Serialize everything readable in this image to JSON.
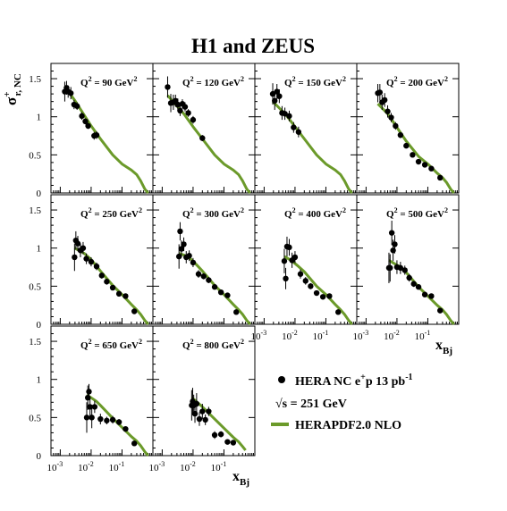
{
  "figure": {
    "title": "H1 and ZEUS",
    "ylabel": {
      "main": "σ",
      "sup": "+",
      "sub": "r, NC"
    },
    "xlabel": {
      "main": "x",
      "sub": "Bj"
    },
    "y_ticks": [
      "0",
      "0.5",
      "1",
      "1.5"
    ],
    "x_ticks": [
      {
        "base": "10",
        "exp": "-3"
      },
      {
        "base": "10",
        "exp": "-2"
      },
      {
        "base": "10",
        "exp": "-1"
      }
    ],
    "legend": {
      "data_label": "HERA NC e",
      "data_sup": "+",
      "data_tail": "p 13 pb",
      "data_tail_sup": "-1",
      "sqrt_s": "√s = 251 GeV",
      "model_label": "HERAPDF2.0 NLO"
    },
    "colors": {
      "model": "#6b9a2a",
      "data": "#000000",
      "frame": "#000000"
    }
  },
  "chart_data": [
    {
      "type": "scatter",
      "q2_label": "Q",
      "q2_sup": "2",
      "q2_value": " = 90 GeV",
      "q2_unit_sup": "2",
      "xlim": [
        0.0005,
        1
      ],
      "ylim": [
        0,
        1.7
      ],
      "log_x": true,
      "series": [
        {
          "name": "HERA NC e+p 13 pb-1",
          "x": [
            0.0014,
            0.0016,
            0.0018,
            0.0022,
            0.0028,
            0.0035,
            0.005,
            0.0065,
            0.008,
            0.0125,
            0.015
          ],
          "y": [
            1.33,
            1.38,
            1.33,
            1.31,
            1.16,
            1.14,
            1.01,
            0.94,
            0.88,
            0.75,
            0.76
          ],
          "yerr": [
            0.13,
            0.09,
            0.08,
            0.08,
            0.06,
            0.05,
            0.05,
            0.04,
            0.04,
            0.05,
            0.05
          ]
        },
        {
          "name": "HERAPDF2.0 NLO",
          "x": [
            0.0014,
            0.002,
            0.003,
            0.005,
            0.01,
            0.02,
            0.05,
            0.1,
            0.2,
            0.3,
            0.4,
            0.55,
            0.7
          ],
          "y": [
            1.4,
            1.31,
            1.21,
            1.07,
            0.88,
            0.71,
            0.5,
            0.38,
            0.3,
            0.24,
            0.16,
            0.05,
            0.0
          ]
        }
      ]
    },
    {
      "type": "scatter",
      "q2_label": "Q",
      "q2_sup": "2",
      "q2_value": " = 120 GeV",
      "q2_unit_sup": "2",
      "xlim": [
        0.0005,
        1
      ],
      "ylim": [
        0,
        1.7
      ],
      "log_x": true,
      "series": [
        {
          "name": "HERA NC e+p 13 pb-1",
          "x": [
            0.0015,
            0.0019,
            0.0023,
            0.0027,
            0.0032,
            0.0038,
            0.0045,
            0.0055,
            0.007,
            0.01,
            0.02
          ],
          "y": [
            1.39,
            1.18,
            1.19,
            1.21,
            1.16,
            1.08,
            1.17,
            1.13,
            1.05,
            0.96,
            0.72
          ],
          "yerr": [
            0.14,
            0.12,
            0.1,
            0.08,
            0.08,
            0.07,
            0.06,
            0.06,
            0.05,
            0.05,
            0.04
          ]
        },
        {
          "name": "HERAPDF2.0 NLO",
          "x": [
            0.0015,
            0.002,
            0.003,
            0.005,
            0.01,
            0.02,
            0.05,
            0.1,
            0.2,
            0.3,
            0.4,
            0.55,
            0.7
          ],
          "y": [
            1.28,
            1.22,
            1.14,
            1.04,
            0.87,
            0.71,
            0.5,
            0.38,
            0.3,
            0.24,
            0.16,
            0.05,
            0.0
          ]
        }
      ]
    },
    {
      "type": "scatter",
      "q2_label": "Q",
      "q2_sup": "2",
      "q2_value": " = 150 GeV",
      "q2_unit_sup": "2",
      "xlim": [
        0.0005,
        1
      ],
      "ylim": [
        0,
        1.7
      ],
      "log_x": true,
      "series": [
        {
          "name": "HERA NC e+p 13 pb-1",
          "x": [
            0.0019,
            0.0022,
            0.0026,
            0.0031,
            0.0038,
            0.0047,
            0.0065,
            0.009,
            0.013
          ],
          "y": [
            1.3,
            1.21,
            1.33,
            1.27,
            1.05,
            1.04,
            1.01,
            0.86,
            0.8
          ],
          "yerr": [
            0.14,
            0.12,
            0.1,
            0.09,
            0.09,
            0.08,
            0.07,
            0.07,
            0.07
          ]
        },
        {
          "name": "HERAPDF2.0 NLO",
          "x": [
            0.0019,
            0.003,
            0.005,
            0.01,
            0.02,
            0.05,
            0.1,
            0.2,
            0.3,
            0.4,
            0.55,
            0.7
          ],
          "y": [
            1.2,
            1.12,
            1.03,
            0.87,
            0.71,
            0.5,
            0.38,
            0.3,
            0.24,
            0.16,
            0.05,
            0.0
          ]
        }
      ]
    },
    {
      "type": "scatter",
      "q2_label": "Q",
      "q2_sup": "2",
      "q2_value": " = 200 GeV",
      "q2_unit_sup": "2",
      "xlim": [
        0.0005,
        1
      ],
      "ylim": [
        0,
        1.7
      ],
      "log_x": true,
      "series": [
        {
          "name": "HERA NC e+p 13 pb-1",
          "x": [
            0.0024,
            0.0028,
            0.0033,
            0.004,
            0.005,
            0.0065,
            0.009,
            0.013,
            0.02,
            0.032,
            0.05,
            0.08,
            0.13,
            0.25
          ],
          "y": [
            1.31,
            1.32,
            1.19,
            1.22,
            1.07,
            0.99,
            0.88,
            0.76,
            0.62,
            0.5,
            0.41,
            0.37,
            0.32,
            0.2
          ],
          "yerr": [
            0.12,
            0.11,
            0.1,
            0.09,
            0.08,
            0.06,
            0.05,
            0.04,
            0.03,
            0.03,
            0.03,
            0.02,
            0.02,
            0.02
          ]
        },
        {
          "name": "HERAPDF2.0 NLO",
          "x": [
            0.0024,
            0.003,
            0.005,
            0.01,
            0.02,
            0.05,
            0.1,
            0.2,
            0.3,
            0.4,
            0.55,
            0.7
          ],
          "y": [
            1.17,
            1.13,
            1.04,
            0.86,
            0.68,
            0.48,
            0.38,
            0.26,
            0.2,
            0.14,
            0.05,
            0.0
          ]
        }
      ]
    },
    {
      "type": "scatter",
      "q2_label": "Q",
      "q2_sup": "2",
      "q2_value": " = 250 GeV",
      "q2_unit_sup": "2",
      "xlim": [
        0.0005,
        1
      ],
      "ylim": [
        0,
        1.7
      ],
      "log_x": true,
      "series": [
        {
          "name": "HERA NC e+p 13 pb-1",
          "x": [
            0.0029,
            0.0032,
            0.0037,
            0.0045,
            0.0055,
            0.007,
            0.01,
            0.015,
            0.022,
            0.032,
            0.05,
            0.08,
            0.13,
            0.25
          ],
          "y": [
            0.88,
            1.1,
            1.06,
            0.97,
            1.0,
            0.86,
            0.82,
            0.76,
            0.64,
            0.56,
            0.48,
            0.4,
            0.37,
            0.17
          ],
          "yerr": [
            0.18,
            0.12,
            0.1,
            0.09,
            0.08,
            0.07,
            0.06,
            0.05,
            0.04,
            0.04,
            0.03,
            0.03,
            0.02,
            0.02
          ]
        },
        {
          "name": "HERAPDF2.0 NLO",
          "x": [
            0.0029,
            0.004,
            0.006,
            0.01,
            0.02,
            0.05,
            0.1,
            0.2,
            0.3,
            0.4,
            0.55,
            0.7
          ],
          "y": [
            1.0,
            0.97,
            0.93,
            0.85,
            0.7,
            0.51,
            0.39,
            0.26,
            0.19,
            0.13,
            0.05,
            0.0
          ]
        }
      ]
    },
    {
      "type": "scatter",
      "q2_label": "Q",
      "q2_sup": "2",
      "q2_value": " = 300 GeV",
      "q2_unit_sup": "2",
      "xlim": [
        0.0005,
        1
      ],
      "ylim": [
        0,
        1.7
      ],
      "log_x": true,
      "series": [
        {
          "name": "HERA NC e+p 13 pb-1",
          "x": [
            0.0035,
            0.0038,
            0.0042,
            0.005,
            0.006,
            0.0075,
            0.01,
            0.015,
            0.022,
            0.032,
            0.05,
            0.08,
            0.13,
            0.25
          ],
          "y": [
            0.89,
            1.22,
            0.99,
            1.05,
            0.88,
            0.9,
            0.81,
            0.66,
            0.63,
            0.58,
            0.49,
            0.42,
            0.38,
            0.16
          ],
          "yerr": [
            0.16,
            0.12,
            0.11,
            0.09,
            0.08,
            0.07,
            0.06,
            0.05,
            0.04,
            0.04,
            0.03,
            0.03,
            0.02,
            0.02
          ]
        },
        {
          "name": "HERAPDF2.0 NLO",
          "x": [
            0.0035,
            0.005,
            0.007,
            0.01,
            0.02,
            0.05,
            0.1,
            0.2,
            0.3,
            0.4,
            0.55,
            0.7
          ],
          "y": [
            0.93,
            0.91,
            0.88,
            0.83,
            0.7,
            0.51,
            0.39,
            0.26,
            0.19,
            0.13,
            0.05,
            0.0
          ]
        }
      ]
    },
    {
      "type": "scatter",
      "q2_label": "Q",
      "q2_sup": "2",
      "q2_value": " = 400 GeV",
      "q2_unit_sup": "2",
      "xlim": [
        0.0005,
        1
      ],
      "ylim": [
        0,
        1.7
      ],
      "log_x": true,
      "series": [
        {
          "name": "HERA NC e+p 13 pb-1",
          "x": [
            0.0045,
            0.005,
            0.0055,
            0.0065,
            0.008,
            0.01,
            0.015,
            0.022,
            0.032,
            0.05,
            0.08,
            0.13,
            0.25
          ],
          "y": [
            0.83,
            0.6,
            1.02,
            1.01,
            0.84,
            0.88,
            0.66,
            0.57,
            0.5,
            0.41,
            0.36,
            0.37,
            0.16
          ],
          "yerr": [
            0.16,
            0.14,
            0.13,
            0.11,
            0.1,
            0.08,
            0.06,
            0.05,
            0.04,
            0.03,
            0.03,
            0.02,
            0.02
          ]
        },
        {
          "name": "HERAPDF2.0 NLO",
          "x": [
            0.0045,
            0.006,
            0.008,
            0.012,
            0.02,
            0.05,
            0.1,
            0.2,
            0.3,
            0.4,
            0.55,
            0.7
          ],
          "y": [
            0.89,
            0.86,
            0.83,
            0.77,
            0.69,
            0.5,
            0.39,
            0.26,
            0.19,
            0.13,
            0.05,
            0.0
          ]
        }
      ]
    },
    {
      "type": "scatter",
      "q2_label": "Q",
      "q2_sup": "2",
      "q2_value": " = 500 GeV",
      "q2_unit_sup": "2",
      "xlim": [
        0.0005,
        1
      ],
      "ylim": [
        0,
        1.7
      ],
      "log_x": true,
      "series": [
        {
          "name": "HERA NC e+p 13 pb-1",
          "x": [
            0.0055,
            0.006,
            0.0068,
            0.0075,
            0.0085,
            0.01,
            0.013,
            0.018,
            0.025,
            0.035,
            0.05,
            0.08,
            0.13,
            0.25
          ],
          "y": [
            0.74,
            0.74,
            1.2,
            0.97,
            1.05,
            0.75,
            0.74,
            0.71,
            0.61,
            0.53,
            0.49,
            0.39,
            0.37,
            0.18
          ],
          "yerr": [
            0.2,
            0.18,
            0.16,
            0.14,
            0.12,
            0.09,
            0.08,
            0.06,
            0.05,
            0.04,
            0.03,
            0.03,
            0.03,
            0.02
          ]
        },
        {
          "name": "HERAPDF2.0 NLO",
          "x": [
            0.0055,
            0.008,
            0.012,
            0.02,
            0.05,
            0.1,
            0.2,
            0.3,
            0.4,
            0.55,
            0.7
          ],
          "y": [
            0.84,
            0.8,
            0.76,
            0.68,
            0.49,
            0.37,
            0.25,
            0.19,
            0.13,
            0.05,
            0.0
          ]
        }
      ]
    },
    {
      "type": "scatter",
      "q2_label": "Q",
      "q2_sup": "2",
      "q2_value": " = 650 GeV",
      "q2_unit_sup": "2",
      "xlim": [
        0.0005,
        1
      ],
      "ylim": [
        0,
        1.7
      ],
      "log_x": true,
      "series": [
        {
          "name": "HERA NC e+p 13 pb-1",
          "x": [
            0.0072,
            0.0078,
            0.0085,
            0.0092,
            0.0105,
            0.013,
            0.02,
            0.032,
            0.05,
            0.08,
            0.13,
            0.25
          ],
          "y": [
            0.5,
            0.76,
            0.84,
            0.64,
            0.5,
            0.64,
            0.48,
            0.46,
            0.47,
            0.44,
            0.35,
            0.16
          ],
          "yerr": [
            0.2,
            0.16,
            0.1,
            0.12,
            0.14,
            0.08,
            0.07,
            0.05,
            0.05,
            0.04,
            0.03,
            0.03
          ]
        },
        {
          "name": "HERAPDF2.0 NLO",
          "x": [
            0.0072,
            0.01,
            0.015,
            0.02,
            0.05,
            0.1,
            0.2,
            0.3,
            0.4,
            0.55,
            0.7
          ],
          "y": [
            0.8,
            0.76,
            0.71,
            0.66,
            0.49,
            0.37,
            0.25,
            0.19,
            0.13,
            0.05,
            0.0
          ]
        }
      ]
    },
    {
      "type": "scatter",
      "q2_label": "Q",
      "q2_sup": "2",
      "q2_value": " = 800 GeV",
      "q2_unit_sup": "2",
      "xlim": [
        0.0005,
        1
      ],
      "ylim": [
        0,
        1.7
      ],
      "log_x": true,
      "series": [
        {
          "name": "HERA NC e+p 13 pb-1",
          "x": [
            0.009,
            0.0097,
            0.0105,
            0.0115,
            0.013,
            0.016,
            0.02,
            0.025,
            0.032,
            0.05,
            0.08,
            0.13,
            0.2
          ],
          "y": [
            0.66,
            0.71,
            0.66,
            0.55,
            0.68,
            0.48,
            0.58,
            0.47,
            0.58,
            0.27,
            0.28,
            0.18,
            0.17
          ],
          "yerr": [
            0.2,
            0.18,
            0.14,
            0.12,
            0.14,
            0.09,
            0.1,
            0.07,
            0.06,
            0.05,
            0.04,
            0.03,
            0.03
          ]
        },
        {
          "name": "HERAPDF2.0 NLO",
          "x": [
            0.009,
            0.012,
            0.02,
            0.05,
            0.1,
            0.2,
            0.3,
            0.4,
            0.5
          ],
          "y": [
            0.76,
            0.72,
            0.64,
            0.48,
            0.36,
            0.24,
            0.18,
            0.12,
            0.07
          ]
        }
      ]
    }
  ]
}
